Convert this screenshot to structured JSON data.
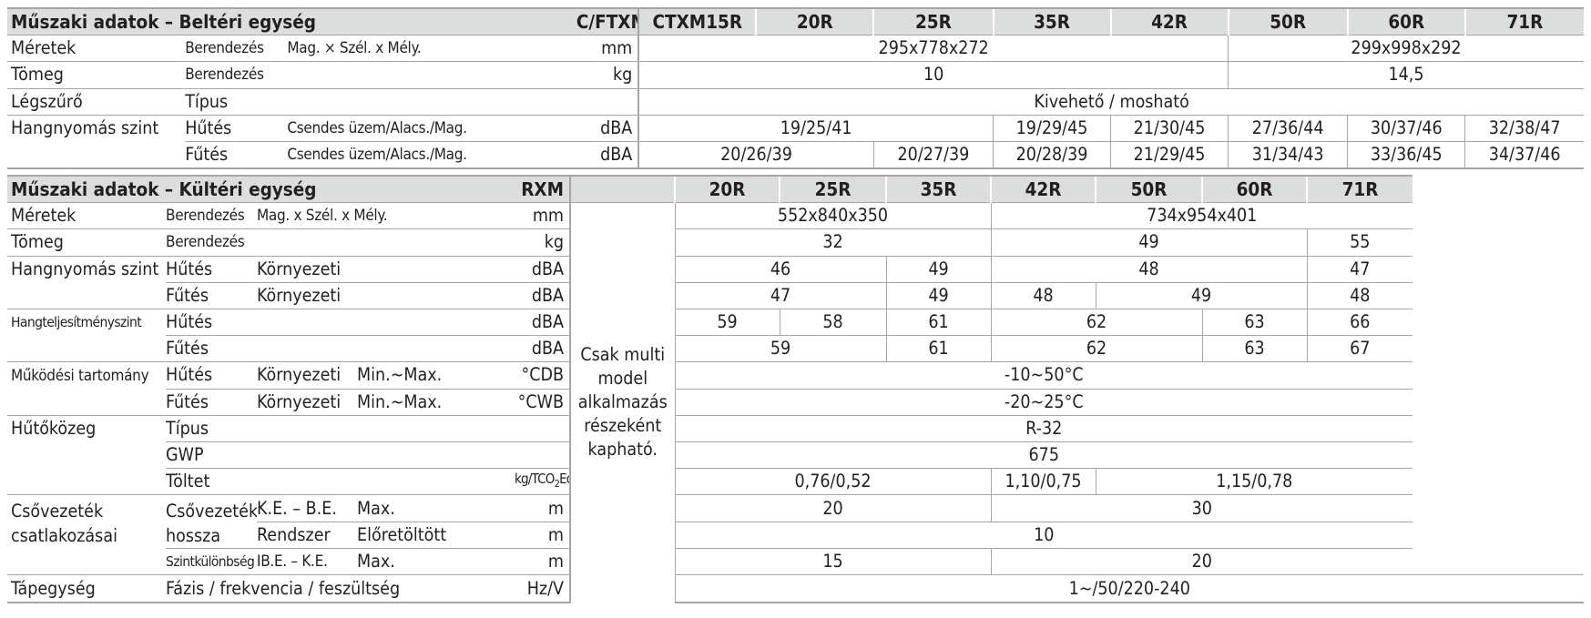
{
  "models": [
    "CTXM15R",
    "20R",
    "25R",
    "35R",
    "42R",
    "50R",
    "60R",
    "71R"
  ],
  "indoor": {
    "title": "Műszaki adatok – Beltéri egység",
    "model_series": "C/FTXM",
    "dimensions": {
      "label": "Méretek",
      "sub": "Berendezés",
      "desc": "Mag. × Szél. x Mély.",
      "unit": "mm",
      "v1": "295x778x272",
      "v2": "299x998x292"
    },
    "weight": {
      "label": "Tömeg",
      "sub": "Berendezés",
      "unit": "kg",
      "v1": "10",
      "v2": "14,5"
    },
    "filter": {
      "label": "Légszűrő",
      "sub": "Típus",
      "value": "Kivehető / mosható"
    },
    "sound_pressure": {
      "label": "Hangnyomás szint",
      "cooling": {
        "mode": "Hűtés",
        "desc": "Csendes üzem/Alacs./Mag.",
        "unit": "dBA",
        "v1": "19/25/41",
        "v35": "19/29/45",
        "v42": "21/30/45",
        "v50": "27/36/44",
        "v60": "30/37/46",
        "v71": "32/38/47"
      },
      "heating": {
        "mode": "Fűtés",
        "desc": "Csendes üzem/Alacs./Mag.",
        "unit": "dBA",
        "v1": "20/26/39",
        "v25": "20/27/39",
        "v35": "20/28/39",
        "v42": "21/29/45",
        "v50": "31/34/43",
        "v60": "33/36/45",
        "v71": "34/37/46"
      }
    }
  },
  "outdoor": {
    "title": "Műszaki adatok – Kültéri egység",
    "model_series": "RXM",
    "multi_note": "Csak multi model alkalmazás részeként kapható.",
    "dimensions": {
      "label": "Méretek",
      "sub": "Berendezés",
      "desc": "Mag. x Szél. x Mély.",
      "unit": "mm",
      "v1": "552x840x350",
      "v2": "734x954x401"
    },
    "weight": {
      "label": "Tömeg",
      "sub": "Berendezés",
      "unit": "kg",
      "v1": "32",
      "v2": "49",
      "v3": "55"
    },
    "sound_pressure": {
      "label": "Hangnyomás szint",
      "cooling": {
        "mode": "Hűtés",
        "desc": "Környezeti",
        "unit": "dBA",
        "v1": "46",
        "v2": "49",
        "v3": "48",
        "v4": "47"
      },
      "heating": {
        "mode": "Fűtés",
        "desc": "Környezeti",
        "unit": "dBA",
        "v1": "47",
        "v2": "49",
        "v3": "48",
        "v4": "49",
        "v5": "48"
      }
    },
    "sound_power": {
      "label": "Hangteljesítményszint",
      "cooling": {
        "mode": "Hűtés",
        "unit": "dBA",
        "v1": "59",
        "v2": "58",
        "v3": "61",
        "v4": "62",
        "v5": "63",
        "v6": "66"
      },
      "heating": {
        "mode": "Fűtés",
        "unit": "dBA",
        "v1": "59",
        "v2": "61",
        "v3": "62",
        "v4": "63",
        "v5": "67"
      }
    },
    "operating_range": {
      "label": "Működési tartomány",
      "cooling": {
        "mode": "Hűtés",
        "desc": "Környezeti",
        "range": "Min.~Max.",
        "unit": "°CDB",
        "value": "-10~50°C"
      },
      "heating": {
        "mode": "Fűtés",
        "desc": "Környezeti",
        "range": "Min.~Max.",
        "unit": "°CWB",
        "value": "-20~25°C"
      }
    },
    "refrigerant": {
      "label": "Hűtőközeg",
      "type": {
        "sub": "Típus",
        "value": "R-32"
      },
      "gwp": {
        "sub": "GWP",
        "value": "675"
      },
      "charge": {
        "sub": "Töltet",
        "unit": "kg/TCO",
        "unit_sub": "2",
        "unit_end": "Eq",
        "v1": "0,76/0,52",
        "v2": "1,10/0,75",
        "v3": "1,15/0,78"
      }
    },
    "piping": {
      "label": "Csővezeték csatlakozásai",
      "length": {
        "sub": "Csővezeték hossza",
        "desc": "K.E. – B.E.",
        "range": "Max.",
        "unit": "m",
        "v1": "20",
        "v2": "30"
      },
      "system": {
        "desc": "Rendszer",
        "range": "Előretöltött",
        "unit": "m",
        "value": "10"
      },
      "level": {
        "sub": "Szintkülönbség",
        "desc": "IB.E. – K.E.",
        "range": "Max.",
        "unit": "m",
        "v1": "15",
        "v2": "20"
      }
    },
    "power": {
      "label": "Tápegység",
      "desc": "Fázis / frekvencia / feszültség",
      "unit": "Hz/V",
      "value": "1~/50/220-240"
    }
  }
}
